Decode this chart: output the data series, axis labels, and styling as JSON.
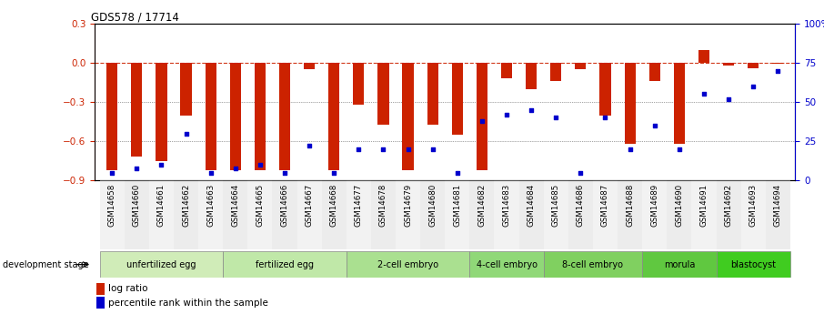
{
  "title": "GDS578 / 17714",
  "samples": [
    "GSM14658",
    "GSM14660",
    "GSM14661",
    "GSM14662",
    "GSM14663",
    "GSM14664",
    "GSM14665",
    "GSM14666",
    "GSM14667",
    "GSM14668",
    "GSM14677",
    "GSM14678",
    "GSM14679",
    "GSM14680",
    "GSM14681",
    "GSM14682",
    "GSM14683",
    "GSM14684",
    "GSM14685",
    "GSM14686",
    "GSM14687",
    "GSM14688",
    "GSM14689",
    "GSM14690",
    "GSM14691",
    "GSM14692",
    "GSM14693",
    "GSM14694"
  ],
  "log_ratio": [
    -0.82,
    -0.72,
    -0.75,
    -0.4,
    -0.82,
    -0.82,
    -0.82,
    -0.82,
    -0.05,
    -0.82,
    -0.32,
    -0.47,
    -0.82,
    -0.47,
    -0.55,
    -0.82,
    -0.12,
    -0.2,
    -0.14,
    -0.05,
    -0.4,
    -0.62,
    -0.14,
    -0.62,
    0.1,
    -0.02,
    -0.04,
    -0.01
  ],
  "percentile_rank": [
    5,
    8,
    10,
    30,
    5,
    8,
    10,
    5,
    22,
    5,
    20,
    20,
    20,
    20,
    5,
    38,
    42,
    45,
    40,
    5,
    40,
    20,
    35,
    20,
    55,
    52,
    60,
    70
  ],
  "stages": [
    {
      "label": "unfertilized egg",
      "start": 0,
      "end": 5,
      "color": "#d0ecb8"
    },
    {
      "label": "fertilized egg",
      "start": 5,
      "end": 10,
      "color": "#c0e8a8"
    },
    {
      "label": "2-cell embryo",
      "start": 10,
      "end": 15,
      "color": "#aae090"
    },
    {
      "label": "4-cell embryo",
      "start": 15,
      "end": 18,
      "color": "#90d878"
    },
    {
      "label": "8-cell embryo",
      "start": 18,
      "end": 22,
      "color": "#80d060"
    },
    {
      "label": "morula",
      "start": 22,
      "end": 25,
      "color": "#60c840"
    },
    {
      "label": "blastocyst",
      "start": 25,
      "end": 28,
      "color": "#40cc20"
    }
  ],
  "bar_color": "#cc2200",
  "dot_color": "#0000cc",
  "ylim_left": [
    -0.9,
    0.3
  ],
  "ylim_right": [
    0,
    100
  ],
  "yticks_left": [
    -0.9,
    -0.6,
    -0.3,
    0.0,
    0.3
  ],
  "yticks_right": [
    0,
    25,
    50,
    75,
    100
  ],
  "grid_lines": [
    -0.3,
    -0.6
  ],
  "hline_zero": 0.0,
  "background_color": "#ffffff"
}
